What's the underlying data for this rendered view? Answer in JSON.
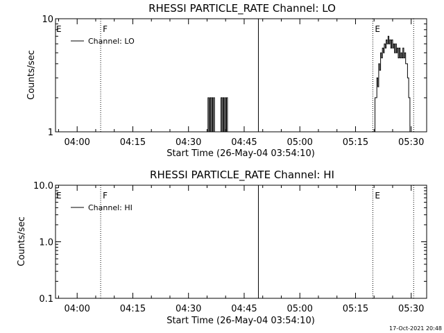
{
  "chart_data": [
    {
      "type": "line",
      "title": "RHESSI PARTICLE_RATE Channel: LO",
      "xlabel": "Start Time (26-May-04 03:54:10)",
      "ylabel": "Counts/sec",
      "yscale": "log",
      "xlim": [
        "03:54:10",
        "05:34:10"
      ],
      "ylim": [
        1,
        10
      ],
      "x_ticks": [
        "04:00",
        "04:15",
        "04:30",
        "04:45",
        "05:00",
        "05:15",
        "05:30"
      ],
      "y_ticks": [
        "1",
        "10"
      ],
      "legend": {
        "entries": [
          "Channel: LO"
        ],
        "placement": "top-left"
      },
      "markers": [
        {
          "label": "E",
          "time": "03:54:10",
          "style": "none"
        },
        {
          "label": "F",
          "time": "04:06:20",
          "style": "dotted"
        },
        {
          "label": "",
          "time": "04:48:50",
          "style": "solid"
        },
        {
          "label": "E",
          "time": "05:19:40",
          "style": "dotted"
        },
        {
          "label": "",
          "time": "05:30:40",
          "style": "dotted"
        }
      ],
      "series": [
        {
          "name": "Channel: LO",
          "points": [
            [
              "04:35:00",
              1
            ],
            [
              "04:35:15",
              2
            ],
            [
              "04:35:30",
              1
            ],
            [
              "04:35:45",
              2
            ],
            [
              "04:36:00",
              1
            ],
            [
              "04:36:15",
              2
            ],
            [
              "04:36:30",
              1
            ],
            [
              "04:36:45",
              2
            ],
            [
              "04:37:00",
              1
            ],
            [
              "04:38:30",
              1
            ],
            [
              "04:38:45",
              2
            ],
            [
              "04:39:00",
              1
            ],
            [
              "04:39:15",
              2
            ],
            [
              "04:39:30",
              1
            ],
            [
              "04:39:45",
              2
            ],
            [
              "04:40:00",
              1
            ],
            [
              "04:40:15",
              2
            ],
            [
              "04:40:30",
              1
            ],
            [
              "05:20:00",
              1
            ],
            [
              "05:20:15",
              2
            ],
            [
              "05:20:45",
              3
            ],
            [
              "05:21:00",
              2.5
            ],
            [
              "05:21:15",
              4
            ],
            [
              "05:21:30",
              3.5
            ],
            [
              "05:21:45",
              5
            ],
            [
              "05:22:00",
              4.5
            ],
            [
              "05:22:15",
              5.5
            ],
            [
              "05:22:30",
              5
            ],
            [
              "05:22:45",
              6
            ],
            [
              "05:23:00",
              5.5
            ],
            [
              "05:23:15",
              6.5
            ],
            [
              "05:23:30",
              6
            ],
            [
              "05:23:45",
              7
            ],
            [
              "05:24:00",
              6
            ],
            [
              "05:24:15",
              6.5
            ],
            [
              "05:24:30",
              5.5
            ],
            [
              "05:24:45",
              6.5
            ],
            [
              "05:25:00",
              5.5
            ],
            [
              "05:25:15",
              6
            ],
            [
              "05:25:30",
              5
            ],
            [
              "05:25:45",
              6
            ],
            [
              "05:26:00",
              5
            ],
            [
              "05:26:15",
              5.5
            ],
            [
              "05:26:30",
              4.5
            ],
            [
              "05:26:45",
              5.5
            ],
            [
              "05:27:00",
              4.5
            ],
            [
              "05:27:15",
              5
            ],
            [
              "05:27:30",
              4.5
            ],
            [
              "05:27:45",
              5.5
            ],
            [
              "05:28:00",
              4.5
            ],
            [
              "05:28:15",
              5
            ],
            [
              "05:28:30",
              4
            ],
            [
              "05:29:00",
              3
            ],
            [
              "05:29:20",
              2
            ],
            [
              "05:29:40",
              1
            ]
          ]
        }
      ]
    },
    {
      "type": "line",
      "title": "RHESSI PARTICLE_RATE Channel: HI",
      "xlabel": "Start Time (26-May-04 03:54:10)",
      "ylabel": "Counts/sec",
      "yscale": "log",
      "xlim": [
        "03:54:10",
        "05:34:10"
      ],
      "ylim": [
        0.1,
        10
      ],
      "x_ticks": [
        "04:00",
        "04:15",
        "04:30",
        "04:45",
        "05:00",
        "05:15",
        "05:30"
      ],
      "y_ticks": [
        "0.1",
        "1.0",
        "10.0"
      ],
      "legend": {
        "entries": [
          "Channel: HI"
        ],
        "placement": "top-left"
      },
      "markers": [
        {
          "label": "E",
          "time": "03:54:10",
          "style": "none"
        },
        {
          "label": "F",
          "time": "04:06:20",
          "style": "dotted"
        },
        {
          "label": "",
          "time": "04:48:50",
          "style": "solid"
        },
        {
          "label": "E",
          "time": "05:19:40",
          "style": "dotted"
        },
        {
          "label": "",
          "time": "05:30:40",
          "style": "dotted"
        }
      ],
      "series": [
        {
          "name": "Channel: HI",
          "points": []
        }
      ]
    }
  ],
  "footer": {
    "timestamp": "17-Oct-2021 20:48"
  }
}
